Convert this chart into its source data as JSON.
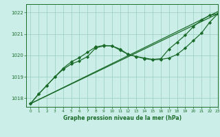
{
  "bg_color": "#cceee8",
  "grid_color": "#99ccbb",
  "line_color": "#1a6b2a",
  "title": "Graphe pression niveau de la mer (hPa)",
  "xlim": [
    -0.5,
    23
  ],
  "ylim": [
    1017.6,
    1022.4
  ],
  "yticks": [
    1018,
    1019,
    1020,
    1021,
    1022
  ],
  "xticks": [
    0,
    1,
    2,
    3,
    4,
    5,
    6,
    7,
    8,
    9,
    10,
    11,
    12,
    13,
    14,
    15,
    16,
    17,
    18,
    19,
    20,
    21,
    22,
    23
  ],
  "series": [
    {
      "x": [
        0,
        23
      ],
      "y": [
        1017.75,
        1021.95
      ],
      "marker": null,
      "linewidth": 0.9
    },
    {
      "x": [
        0,
        23
      ],
      "y": [
        1017.75,
        1022.05
      ],
      "marker": null,
      "linewidth": 0.9
    },
    {
      "x": [
        0,
        1,
        2,
        3,
        4,
        5,
        6,
        7,
        8,
        9,
        10,
        11,
        12,
        13,
        14,
        15,
        16,
        17,
        18,
        19,
        20,
        21,
        22,
        23
      ],
      "y": [
        1017.75,
        1018.2,
        1018.6,
        1019.0,
        1019.35,
        1019.6,
        1019.75,
        1019.95,
        1020.35,
        1020.45,
        1020.45,
        1020.25,
        1020.05,
        1019.95,
        1019.85,
        1019.8,
        1019.82,
        1019.88,
        1020.05,
        1020.35,
        1020.7,
        1021.05,
        1021.55,
        1021.95
      ],
      "marker": "D",
      "markersize": 2.2,
      "linewidth": 0.9
    },
    {
      "x": [
        0,
        1,
        2,
        3,
        4,
        5,
        6,
        7,
        8,
        9,
        10,
        11,
        12,
        13,
        14,
        15,
        16,
        17,
        18,
        19,
        20,
        21,
        22,
        23
      ],
      "y": [
        1017.75,
        1018.2,
        1018.6,
        1019.0,
        1019.4,
        1019.7,
        1019.9,
        1020.15,
        1020.4,
        1020.47,
        1020.45,
        1020.3,
        1020.05,
        1019.95,
        1019.88,
        1019.82,
        1019.85,
        1020.3,
        1020.62,
        1020.95,
        1021.35,
        1021.65,
        1021.88,
        1021.95
      ],
      "marker": "D",
      "markersize": 2.2,
      "linewidth": 0.9
    }
  ]
}
